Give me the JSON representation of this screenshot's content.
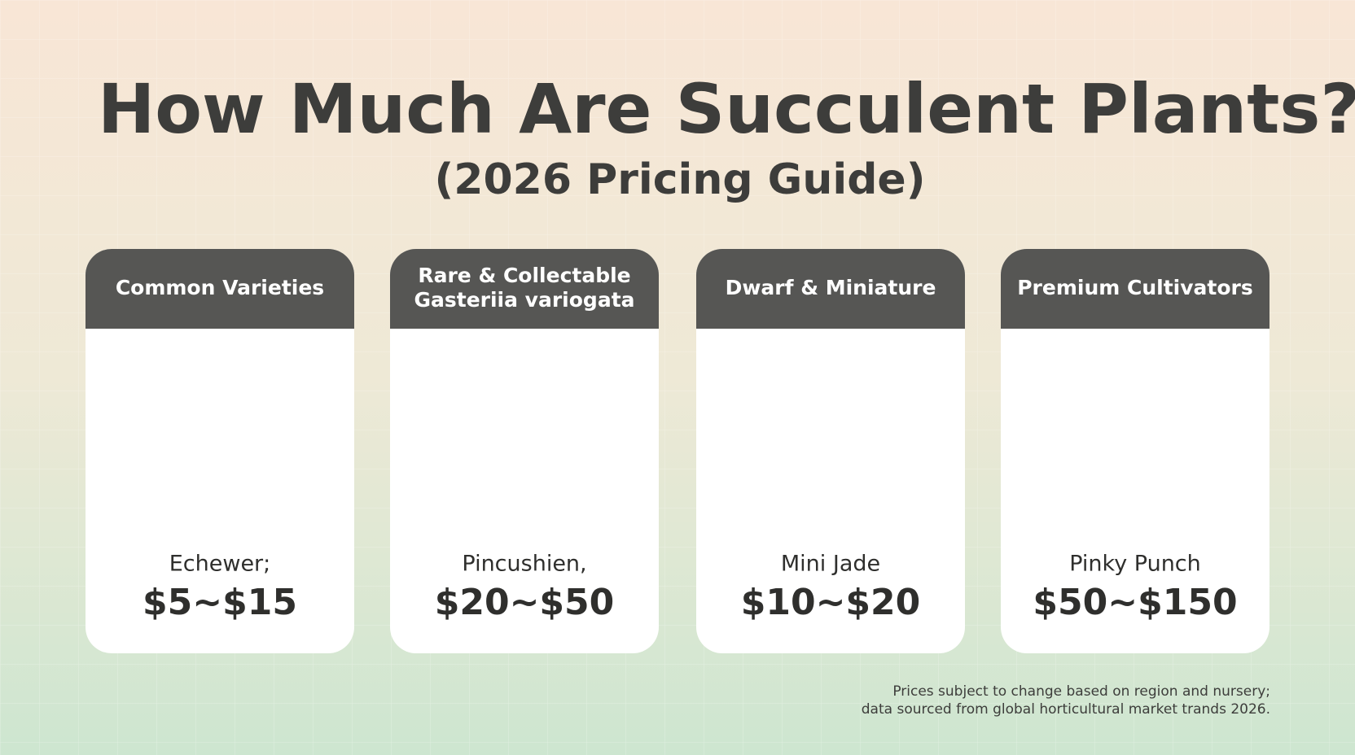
{
  "header": {
    "title": "How Much Are Succulent Plants?",
    "subtitle": "(2026 Pricing Guide)"
  },
  "cards": [
    {
      "heading": [
        "Common Varieties"
      ],
      "name": "Echewer;",
      "price": "$5~$15"
    },
    {
      "heading": [
        "Rare & Collectable",
        "Gasteriia variogata"
      ],
      "name": "Pincushien,",
      "price": "$20~$50"
    },
    {
      "heading": [
        "Dwarf & Miniature"
      ],
      "name": "Mini Jade",
      "price": "$10~$20"
    },
    {
      "heading": [
        "Premium Cultivators"
      ],
      "name": "Pinky Punch",
      "price": "$50~$150"
    }
  ],
  "footnote": [
    "Prices subject to change based on region and nursery;",
    "data sourced from global horticultural market trands 2026."
  ]
}
